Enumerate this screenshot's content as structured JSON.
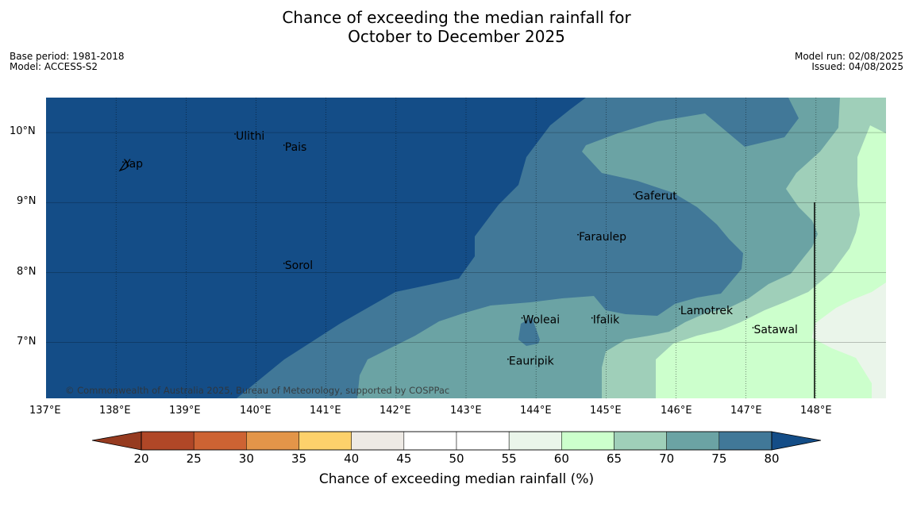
{
  "title_line1": "Chance of exceeding the median rainfall for",
  "title_line2": "October to December 2025",
  "meta_left": {
    "base_period": "Base period: 1981-2018",
    "model": "Model: ACCESS-S2"
  },
  "meta_right": {
    "model_run": "Model run: 02/08/2025",
    "issued": "Issued: 04/08/2025"
  },
  "copyright": "© Commonwealth of Australia 2025, Bureau of Meteorology, supported by COSPPac",
  "map": {
    "lon_range": [
      137,
      149
    ],
    "lat_range": [
      6.2,
      10.5
    ],
    "lon_ticks": [
      "137°E",
      "138°E",
      "139°E",
      "140°E",
      "141°E",
      "142°E",
      "143°E",
      "144°E",
      "145°E",
      "146°E",
      "147°E",
      "148°E"
    ],
    "lat_ticks": [
      "10°N",
      "9°N",
      "8°N",
      "7°N"
    ],
    "places": [
      {
        "name": "Yap",
        "lon": 138.1,
        "lat": 9.5
      },
      {
        "name": "Ulithi",
        "lon": 139.7,
        "lat": 9.9
      },
      {
        "name": "Pais",
        "lon": 140.4,
        "lat": 9.74
      },
      {
        "name": "Gaferut",
        "lon": 145.4,
        "lat": 9.04
      },
      {
        "name": "Faraulep",
        "lon": 144.6,
        "lat": 8.46
      },
      {
        "name": "Sorol",
        "lon": 140.4,
        "lat": 8.05
      },
      {
        "name": "Lamotrek",
        "lon": 146.05,
        "lat": 7.4
      },
      {
        "name": "Woleai",
        "lon": 143.8,
        "lat": 7.27
      },
      {
        "name": "Ifalik",
        "lon": 144.8,
        "lat": 7.27
      },
      {
        "name": "Satawal",
        "lon": 147.1,
        "lat": 7.13
      },
      {
        "name": "Eauripik",
        "lon": 143.6,
        "lat": 6.68
      }
    ],
    "colors": {
      "above_80": "#144d87",
      "75_80": "#417898",
      "70_75": "#6ba3a4",
      "65_70": "#9fcfb9",
      "60_65": "#ccffcc",
      "55_60": "#eaf5ea"
    }
  },
  "colorbar": {
    "ticks": [
      "20",
      "25",
      "30",
      "35",
      "40",
      "45",
      "50",
      "55",
      "60",
      "65",
      "70",
      "75",
      "80"
    ],
    "colors": [
      "#b04727",
      "#cd6333",
      "#e39549",
      "#fdd16b",
      "#eeeae5",
      "#ffffff",
      "#ffffff",
      "#eaf5ea",
      "#ccffcc",
      "#9fcfb9",
      "#6ba3a4",
      "#417898"
    ],
    "under_color": "#963b20",
    "over_color": "#144d87",
    "label": "Chance of exceeding median rainfall (%)"
  }
}
